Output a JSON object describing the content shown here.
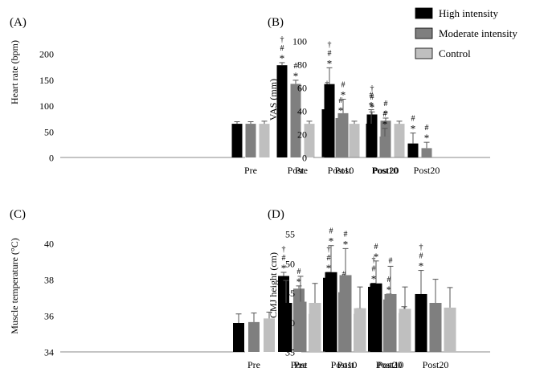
{
  "legend": [
    {
      "name": "High intensity",
      "color": "#000000"
    },
    {
      "name": "Moderate intensity",
      "color": "#7f7f7f"
    },
    {
      "name": "Control",
      "color": "#bfbfbf"
    }
  ],
  "chart_data": [
    {
      "type": "bar",
      "panel_label": "(A)",
      "ylabel": "Heart rate (bpm)",
      "ylim": [
        0,
        200
      ],
      "yticks": [
        0,
        50,
        100,
        150,
        200
      ],
      "categories": [
        "Pre",
        "Post",
        "Post10",
        "Post20"
      ],
      "series": [
        {
          "name": "High intensity",
          "values": [
            65,
            178,
            93,
            83
          ],
          "errors": [
            4,
            5,
            4,
            5
          ]
        },
        {
          "name": "Moderate intensity",
          "values": [
            65,
            142,
            76,
            71
          ],
          "errors": [
            4,
            7,
            6,
            5
          ]
        },
        {
          "name": "Control",
          "values": [
            65,
            65,
            65,
            65
          ],
          "errors": [
            5,
            5,
            5,
            5
          ]
        }
      ],
      "annotations": [
        {
          "category": "Post",
          "series": "High intensity",
          "marks": [
            "†",
            "#",
            "*"
          ]
        },
        {
          "category": "Post",
          "series": "Moderate intensity",
          "marks": [
            "#",
            "*"
          ]
        },
        {
          "category": "Post10",
          "series": "High intensity",
          "marks": [
            "†",
            "#",
            "*"
          ]
        },
        {
          "category": "Post10",
          "series": "Moderate intensity",
          "marks": [
            "#",
            "*"
          ]
        },
        {
          "category": "Post20",
          "series": "High intensity",
          "marks": [
            "†",
            "#",
            "*"
          ]
        },
        {
          "category": "Post20",
          "series": "Moderate intensity",
          "marks": [
            "#",
            "*"
          ]
        }
      ]
    },
    {
      "type": "bar",
      "panel_label": "(B)",
      "ylabel": "VAS (mm)",
      "ylim": [
        0,
        100
      ],
      "yticks": [
        0,
        20,
        40,
        60,
        80,
        100
      ],
      "categories": [
        "Pre",
        "Post",
        "Post10",
        "Post20"
      ],
      "series": [
        {
          "name": "High intensity",
          "values": [
            0,
            63,
            29,
            12
          ],
          "errors": [
            0,
            14,
            12,
            9
          ]
        },
        {
          "name": "Moderate intensity",
          "values": [
            0,
            38,
            18,
            8
          ],
          "errors": [
            0,
            12,
            7,
            5
          ]
        },
        {
          "name": "Control",
          "values": [
            0,
            0,
            0,
            0
          ],
          "errors": [
            0,
            0,
            0,
            0
          ]
        }
      ],
      "annotations": [
        {
          "category": "Post",
          "series": "High intensity",
          "marks": [
            "†",
            "#",
            "*"
          ]
        },
        {
          "category": "Post",
          "series": "Moderate intensity",
          "marks": [
            "#",
            "*"
          ]
        },
        {
          "category": "Post10",
          "series": "High intensity",
          "marks": [
            "#",
            "*"
          ]
        },
        {
          "category": "Post10",
          "series": "Moderate intensity",
          "marks": [
            "#",
            "*"
          ]
        },
        {
          "category": "Post20",
          "series": "High intensity",
          "marks": [
            "#",
            "*"
          ]
        },
        {
          "category": "Post20",
          "series": "Moderate intensity",
          "marks": [
            "#",
            "*"
          ]
        }
      ]
    },
    {
      "type": "bar",
      "panel_label": "(C)",
      "ylabel": "Muscle temperature (°C)",
      "ylim": [
        34,
        40
      ],
      "yticks": [
        34,
        36,
        38,
        40
      ],
      "categories": [
        "Pre",
        "Post",
        "Post10",
        "Post20"
      ],
      "series": [
        {
          "name": "High intensity",
          "values": [
            35.6,
            38.2,
            38.1,
            37.6
          ],
          "errors": [
            0.5,
            0.2,
            0.3,
            0.2
          ]
        },
        {
          "name": "Moderate intensity",
          "values": [
            35.65,
            37.5,
            37.3,
            36.9
          ],
          "errors": [
            0.5,
            0.15,
            0.2,
            0.3
          ]
        },
        {
          "name": "Control",
          "values": [
            35.85,
            36.1,
            36.1,
            36.15
          ],
          "errors": [
            0.35,
            0.3,
            0.3,
            0.35
          ]
        }
      ],
      "annotations": [
        {
          "category": "Post",
          "series": "High intensity",
          "marks": [
            "†",
            "#",
            "*"
          ]
        },
        {
          "category": "Post",
          "series": "Moderate intensity",
          "marks": [
            "#",
            "*"
          ]
        },
        {
          "category": "Post10",
          "series": "High intensity",
          "marks": [
            "†",
            "#",
            "*"
          ]
        },
        {
          "category": "Post10",
          "series": "Moderate intensity",
          "marks": [
            "#",
            "*"
          ]
        },
        {
          "category": "Post20",
          "series": "High intensity",
          "marks": [
            "†",
            "#",
            "*"
          ]
        },
        {
          "category": "Post20",
          "series": "Moderate intensity",
          "marks": [
            "#",
            "*"
          ]
        }
      ]
    },
    {
      "type": "bar",
      "panel_label": "(D)",
      "ylabel": "CMJ height (cm)",
      "ylim": [
        35,
        55
      ],
      "yticks": [
        35,
        40,
        45,
        50,
        55
      ],
      "categories": [
        "Pre",
        "Post",
        "Post10",
        "Post20"
      ],
      "series": [
        {
          "name": "High intensity",
          "values": [
            43.3,
            48.5,
            46.6,
            44.8
          ],
          "errors": [
            3.8,
            4.5,
            3.8,
            4.0
          ]
        },
        {
          "name": "Moderate intensity",
          "values": [
            43.5,
            48.0,
            44.8,
            43.3
          ],
          "errors": [
            4.3,
            4.5,
            4.7,
            4.0
          ]
        },
        {
          "name": "Control",
          "values": [
            43.3,
            42.4,
            42.3,
            42.5
          ],
          "errors": [
            3.3,
            3.6,
            3.7,
            3.4
          ]
        }
      ],
      "annotations": [
        {
          "category": "Post",
          "series": "High intensity",
          "marks": [
            "#",
            "*"
          ]
        },
        {
          "category": "Post",
          "series": "Moderate intensity",
          "marks": [
            "#",
            "*"
          ]
        },
        {
          "category": "Post10",
          "series": "High intensity",
          "marks": [
            "#",
            "*"
          ]
        },
        {
          "category": "Post10",
          "series": "Moderate intensity",
          "marks": [
            "#"
          ]
        },
        {
          "category": "Post20",
          "series": "High intensity",
          "marks": [
            "†",
            "#",
            "*"
          ]
        }
      ]
    }
  ]
}
